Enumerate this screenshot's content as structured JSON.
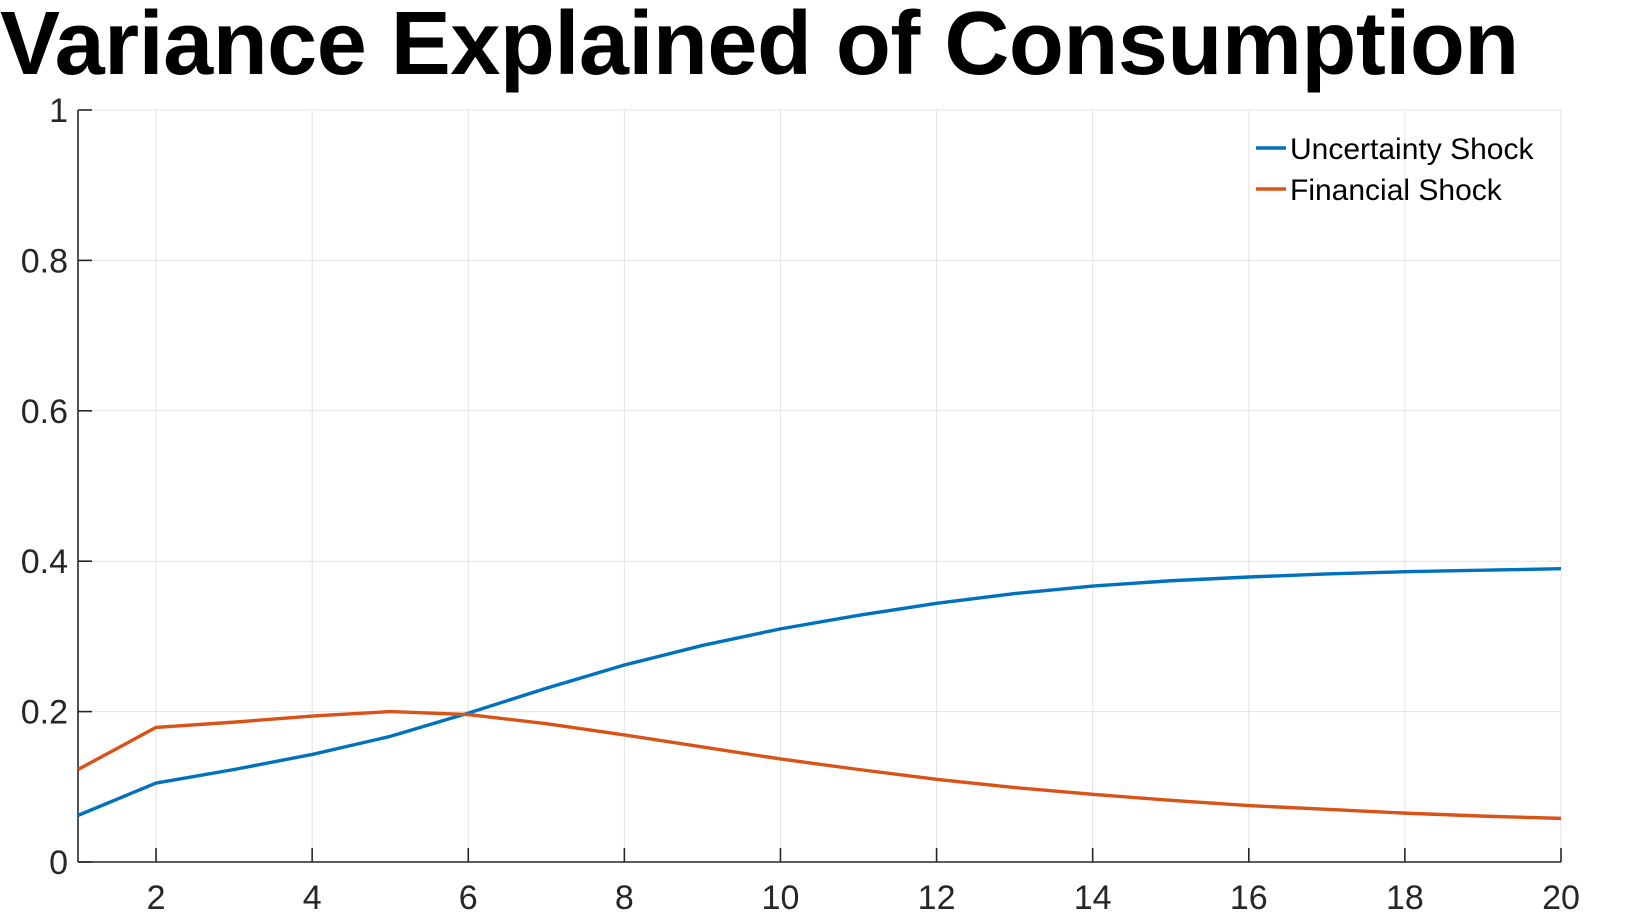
{
  "chart_data": {
    "type": "line",
    "title": "Variance Explained of Consumption",
    "xlabel": "",
    "ylabel": "",
    "xlim": [
      1,
      20
    ],
    "ylim": [
      0,
      1
    ],
    "xticks": [
      2,
      4,
      6,
      8,
      10,
      12,
      14,
      16,
      18,
      20
    ],
    "yticks": [
      0,
      0.2,
      0.4,
      0.6,
      0.8,
      1
    ],
    "ytick_labels": [
      "0",
      "0.2",
      "0.4",
      "0.6",
      "0.8",
      "1"
    ],
    "grid": true,
    "legend_position": "top-right",
    "x": [
      1,
      2,
      3,
      4,
      5,
      6,
      7,
      8,
      9,
      10,
      11,
      12,
      13,
      14,
      15,
      16,
      17,
      18,
      19,
      20
    ],
    "series": [
      {
        "name": "Uncertainty Shock",
        "color": "#0072BD",
        "values": [
          0.062,
          0.105,
          0.123,
          0.143,
          0.167,
          0.198,
          0.231,
          0.262,
          0.288,
          0.31,
          0.328,
          0.344,
          0.357,
          0.367,
          0.374,
          0.379,
          0.383,
          0.386,
          0.388,
          0.39
        ]
      },
      {
        "name": "Financial Shock",
        "color": "#D95319",
        "values": [
          0.123,
          0.179,
          0.186,
          0.194,
          0.2,
          0.196,
          0.184,
          0.169,
          0.153,
          0.137,
          0.123,
          0.11,
          0.099,
          0.09,
          0.082,
          0.075,
          0.07,
          0.065,
          0.061,
          0.058
        ]
      }
    ]
  }
}
